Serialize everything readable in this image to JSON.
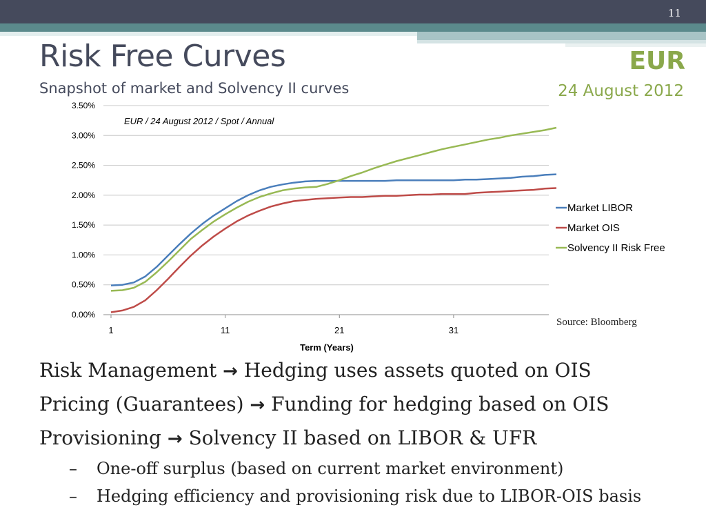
{
  "slide": {
    "page_number": "11",
    "title": "Risk Free Curves",
    "subtitle": "Snapshot of market and Solvency II curves",
    "currency": "EUR",
    "date": "24 August 2012",
    "source": "Source: Bloomberg"
  },
  "bullets": {
    "lines": [
      {
        "left": "Risk Management",
        "arrow": "→",
        "right": "Hedging uses assets quoted on OIS"
      },
      {
        "left": "Pricing (Guarantees)",
        "arrow": "→",
        "right": "Funding for hedging based on OIS"
      },
      {
        "left": "Provisioning",
        "arrow": "→",
        "right": "Solvency II based on LIBOR & UFR"
      }
    ],
    "sub": [
      {
        "dash": "–",
        "text": "One-off surplus (based on current market environment)"
      },
      {
        "dash": "–",
        "text": "Hedging efficiency and provisioning risk due to LIBOR-OIS basis"
      }
    ]
  },
  "chart_data": {
    "type": "line",
    "annotation": "EUR / 24 August 2012 / Spot / Annual",
    "xlabel": "Term (Years)",
    "ylabel": "",
    "xlim": [
      1,
      40
    ],
    "ylim": [
      0,
      0.035
    ],
    "x_ticks": [
      1,
      11,
      21,
      31
    ],
    "y_ticks": [
      0,
      0.005,
      0.01,
      0.015,
      0.02,
      0.025,
      0.03,
      0.035
    ],
    "y_tick_labels": [
      "0.00%",
      "0.50%",
      "1.00%",
      "1.50%",
      "2.00%",
      "2.50%",
      "3.00%",
      "3.50%"
    ],
    "grid": true,
    "legend_position": "right",
    "x": [
      1,
      2,
      3,
      4,
      5,
      6,
      7,
      8,
      9,
      10,
      11,
      12,
      13,
      14,
      15,
      16,
      17,
      18,
      19,
      20,
      21,
      22,
      23,
      24,
      25,
      26,
      27,
      28,
      29,
      30,
      31,
      32,
      33,
      34,
      35,
      36,
      37,
      38,
      39,
      40
    ],
    "series": [
      {
        "name": "Market LIBOR",
        "color": "#4a7ebb",
        "values": [
          0.0049,
          0.005,
          0.0054,
          0.0064,
          0.008,
          0.0099,
          0.0118,
          0.0136,
          0.0152,
          0.0166,
          0.0178,
          0.019,
          0.02,
          0.0208,
          0.0214,
          0.0218,
          0.0221,
          0.0223,
          0.0224,
          0.0224,
          0.0224,
          0.0224,
          0.0224,
          0.0224,
          0.0224,
          0.0225,
          0.0225,
          0.0225,
          0.0225,
          0.0225,
          0.0225,
          0.0226,
          0.0226,
          0.0227,
          0.0228,
          0.0229,
          0.0231,
          0.0232,
          0.0234,
          0.0235
        ]
      },
      {
        "name": "Market OIS",
        "color": "#be4b48",
        "values": [
          0.0004,
          0.0007,
          0.0013,
          0.0024,
          0.0041,
          0.006,
          0.008,
          0.0099,
          0.0116,
          0.0131,
          0.0144,
          0.0156,
          0.0166,
          0.0174,
          0.0181,
          0.0186,
          0.019,
          0.0192,
          0.0194,
          0.0195,
          0.0196,
          0.0197,
          0.0197,
          0.0198,
          0.0199,
          0.0199,
          0.02,
          0.0201,
          0.0201,
          0.0202,
          0.0202,
          0.0202,
          0.0204,
          0.0205,
          0.0206,
          0.0207,
          0.0208,
          0.0209,
          0.0211,
          0.0212
        ]
      },
      {
        "name": "Solvency II Risk Free",
        "color": "#98b954",
        "values": [
          0.004,
          0.0041,
          0.0045,
          0.0055,
          0.0071,
          0.0089,
          0.0108,
          0.0127,
          0.0142,
          0.0156,
          0.0168,
          0.0179,
          0.0189,
          0.0197,
          0.0203,
          0.0208,
          0.0211,
          0.0213,
          0.0214,
          0.0219,
          0.0225,
          0.0232,
          0.0238,
          0.0245,
          0.0251,
          0.0257,
          0.0262,
          0.0267,
          0.0272,
          0.0277,
          0.0281,
          0.0285,
          0.0289,
          0.0293,
          0.0296,
          0.03,
          0.0303,
          0.0306,
          0.0309,
          0.0313
        ]
      }
    ]
  }
}
